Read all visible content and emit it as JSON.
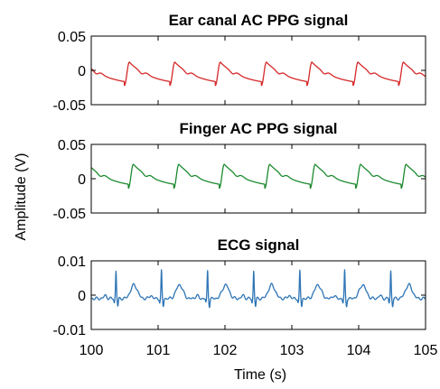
{
  "chart_data": {
    "type": "line",
    "shared_xlabel": "Time (s)",
    "shared_ylabel": "Amplitude (V)",
    "xlim": [
      100,
      105
    ],
    "xticks": [
      100,
      101,
      102,
      103,
      104,
      105
    ],
    "xtick_labels": [
      "100",
      "101",
      "102",
      "103",
      "104",
      "105"
    ],
    "panels": [
      {
        "title": "Ear canal AC PPG signal",
        "color": "#d62728",
        "ylim": [
          -0.05,
          0.05
        ],
        "yticks": [
          0.05,
          0,
          -0.05
        ],
        "ytick_labels": [
          "0.05",
          "0",
          "-0.05"
        ],
        "beat_times": [
          100.57,
          101.25,
          101.93,
          102.62,
          103.3,
          103.99,
          104.67
        ],
        "waveform": "ppg",
        "peak_value": 0.012,
        "trough_value": -0.022
      },
      {
        "title": "Finger AC PPG signal",
        "color": "#1a8a2e",
        "ylim": [
          -0.05,
          0.05
        ],
        "yticks": [
          0.05,
          0,
          -0.05
        ],
        "ytick_labels": [
          "0.05",
          "0",
          "-0.05"
        ],
        "beat_times": [
          100.63,
          101.31,
          101.99,
          102.67,
          103.35,
          104.03,
          104.71
        ],
        "waveform": "ppg",
        "peak_value": 0.021,
        "trough_value": -0.014
      },
      {
        "title": "ECG signal",
        "color": "#2e75b6",
        "ylim": [
          -0.01,
          0.01
        ],
        "yticks": [
          0.01,
          0,
          -0.01
        ],
        "ytick_labels": [
          "0.01",
          "0",
          "-0.01"
        ],
        "beat_times": [
          100.37,
          101.05,
          101.74,
          102.43,
          103.12,
          103.79,
          104.48
        ],
        "waveform": "ecg",
        "r_peak_value": 0.007,
        "t_wave_value": 0.003,
        "baseline_value": -0.001
      }
    ]
  }
}
